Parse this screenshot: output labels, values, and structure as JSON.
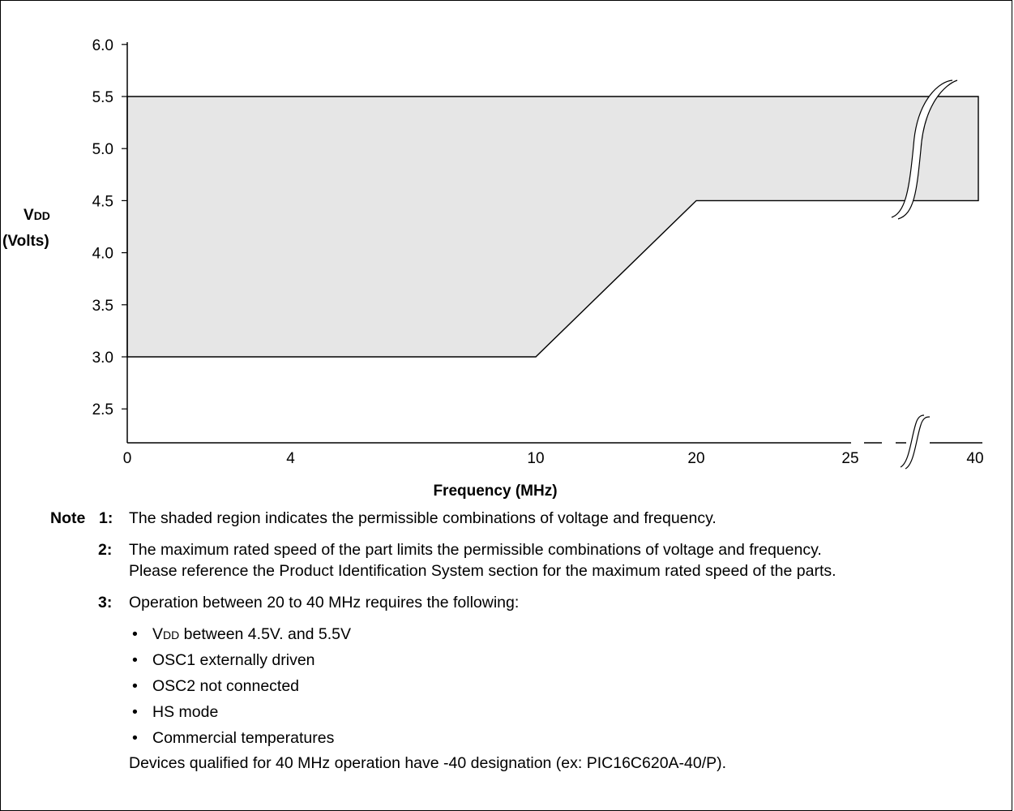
{
  "chart_data": {
    "type": "area",
    "title": "",
    "xlabel": "Frequency (MHz)",
    "ylabel": "VDD (Volts)",
    "ylabel_parts": {
      "main": "V",
      "sub": "DD",
      "unit": "(Volts)"
    },
    "x_ticks": [
      "0",
      "4",
      "10",
      "20",
      "25",
      "40"
    ],
    "y_ticks": [
      "6.0",
      "5.5",
      "5.0",
      "4.5",
      "4.0",
      "3.5",
      "3.0",
      "2.5"
    ],
    "ylim": [
      2.2,
      6.0
    ],
    "x_axis_break": "between 25 and 40",
    "region": {
      "name": "Permissible operating region",
      "upper": [
        {
          "x": 0,
          "y": 5.5
        },
        {
          "x": 40,
          "y": 5.5
        }
      ],
      "lower": [
        {
          "x": 0,
          "y": 3.0
        },
        {
          "x": 10,
          "y": 3.0
        },
        {
          "x": 20,
          "y": 4.5
        },
        {
          "x": 40,
          "y": 4.5
        }
      ],
      "fill_color": "#e6e6e6"
    },
    "grid": false
  },
  "notes": {
    "label": "Note",
    "items": [
      {
        "num": "1:",
        "lines": [
          "The shaded region indicates the permissible combinations of voltage and frequency."
        ]
      },
      {
        "num": "2:",
        "lines": [
          "The maximum rated speed of the part limits the permissible combinations of voltage and frequency.",
          "Please reference the Product Identification System section for the maximum rated speed of the parts."
        ]
      },
      {
        "num": "3:",
        "lines": [
          "Operation between 20 to 40 MHz requires the following:"
        ]
      }
    ],
    "bullet_vdd_main": "V",
    "bullet_vdd_sub": "DD",
    "bullet_vdd_rest": " between 4.5V. and 5.5V",
    "bullets": [
      "OSC1 externally driven",
      "OSC2 not connected",
      "HS mode",
      "Commercial temperatures"
    ],
    "bullet_char": "•",
    "footer": "Devices qualified for 40 MHz operation have -40 designation (ex: PIC16C620A-40/P)."
  }
}
